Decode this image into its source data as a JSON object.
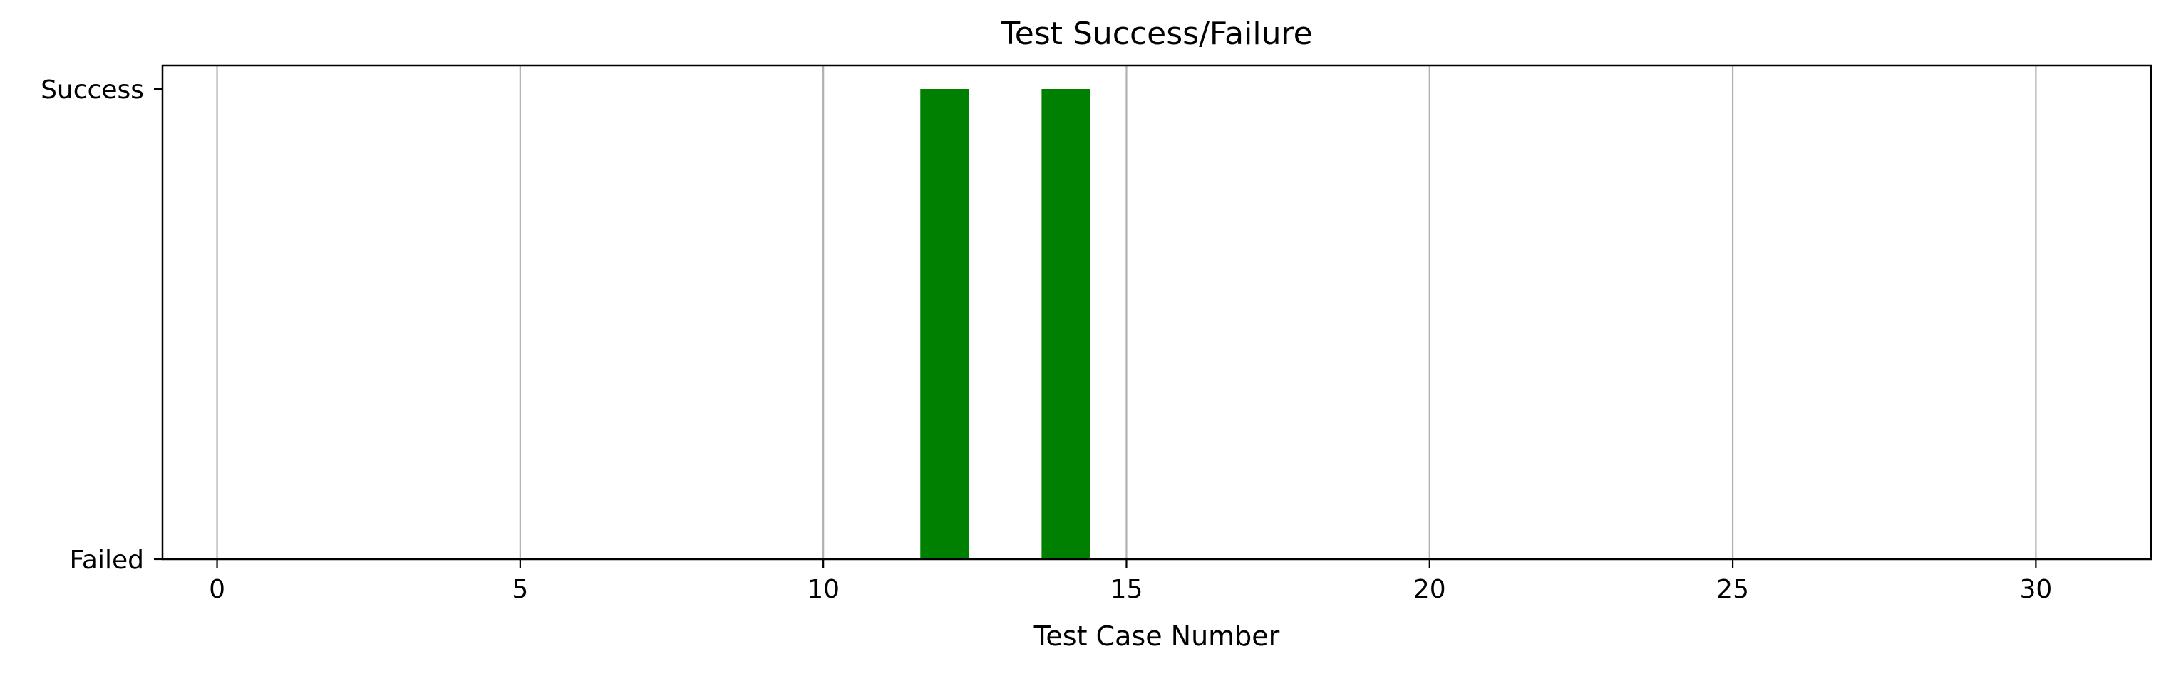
{
  "chart_data": {
    "type": "bar",
    "title": "Test Success/Failure",
    "xlabel": "Test Case Number",
    "ylabel": "",
    "xlim": [
      -0.9,
      31.9
    ],
    "ylim": [
      0,
      1
    ],
    "x_ticks": [
      0,
      5,
      10,
      15,
      20,
      25,
      30
    ],
    "x_tick_labels": [
      "0",
      "5",
      "10",
      "15",
      "20",
      "25",
      "30"
    ],
    "y_ticks": [
      0,
      1
    ],
    "y_tick_labels": [
      "Failed",
      "Success"
    ],
    "grid": "vertical",
    "bar_width": 0.8,
    "bar_color": "#008000",
    "grid_color": "#b0b0b0",
    "x": [
      0,
      1,
      2,
      3,
      4,
      5,
      6,
      7,
      8,
      9,
      10,
      11,
      12,
      13,
      14,
      15,
      16,
      17,
      18,
      19,
      20,
      21,
      22,
      23,
      24,
      25,
      26,
      27,
      28,
      29,
      30,
      31
    ],
    "values": [
      0,
      0,
      0,
      0,
      0,
      0,
      0,
      0,
      0,
      0,
      0,
      0,
      1,
      0,
      1,
      0,
      0,
      0,
      0,
      0,
      0,
      0,
      0,
      0,
      0,
      0,
      0,
      0,
      0,
      0,
      0,
      0
    ]
  }
}
